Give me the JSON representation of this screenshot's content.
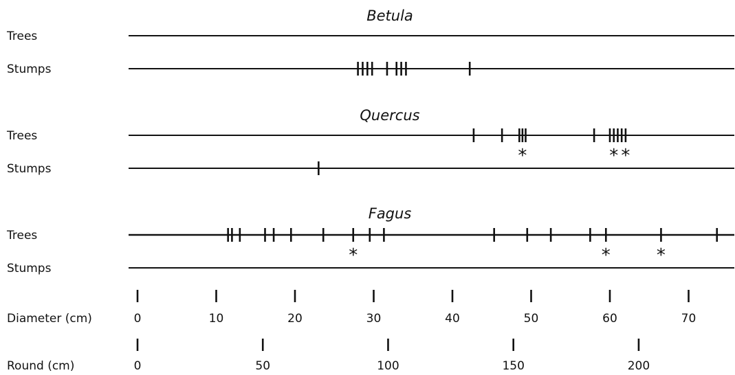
{
  "chart_data": {
    "type": "scatter",
    "groups": [
      {
        "title": "Betula",
        "rows": [
          {
            "label": "Trees",
            "values": [],
            "starred": []
          },
          {
            "label": "Stumps",
            "values": [
              28.0,
              28.6,
              29.2,
              29.8,
              31.7,
              32.9,
              33.5,
              34.1,
              42.2
            ],
            "starred": []
          }
        ]
      },
      {
        "title": "Quercus",
        "rows": [
          {
            "label": "Trees",
            "values": [
              42.7,
              46.3,
              48.5,
              48.9,
              49.3,
              58.0,
              60.0,
              60.5,
              61.0,
              61.5,
              62.0
            ],
            "starred": [
              48.9,
              60.5,
              62.0
            ]
          },
          {
            "label": "Stumps",
            "values": [
              23.0
            ],
            "starred": []
          }
        ]
      },
      {
        "title": "Fagus",
        "rows": [
          {
            "label": "Trees",
            "values": [
              11.5,
              12.0,
              13.0,
              16.2,
              17.3,
              19.5,
              23.6,
              27.4,
              29.5,
              31.3,
              45.3,
              49.5,
              52.5,
              57.5,
              59.5,
              66.5,
              73.6
            ],
            "starred": [
              27.4,
              59.5,
              66.5
            ]
          },
          {
            "label": "Stumps",
            "values": [],
            "starred": []
          }
        ]
      }
    ],
    "axes": [
      {
        "label": "Diameter (cm)",
        "ticks": [
          0,
          10,
          20,
          30,
          40,
          50,
          60,
          70
        ],
        "range": [
          0,
          75.7
        ]
      },
      {
        "label": "Round (cm)",
        "ticks": [
          0,
          50,
          100,
          150,
          200
        ]
      }
    ],
    "legend": "none",
    "grid": false
  }
}
